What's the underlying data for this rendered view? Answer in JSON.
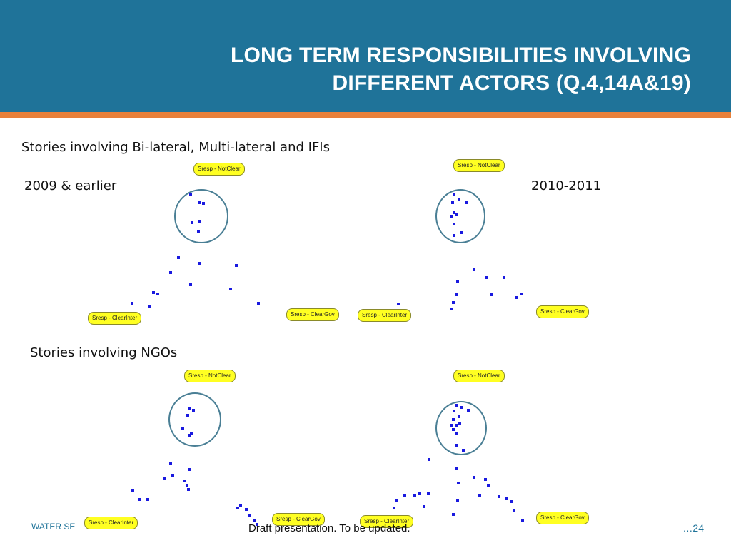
{
  "slide": {
    "title_line1": "LONG TERM RESPONSIBILITIES INVOLVING",
    "title_line2": "DIFFERENT ACTORS (Q.4,14A&19)",
    "section1": "Stories involving Bi-lateral, Multi-lateral and IFIs",
    "section2": "Stories involving NGOs",
    "period_left": "2009 & earlier",
    "period_right": "2010-2011",
    "footer_left": "WATER SE",
    "footer_center": "Draft presentation. To be updated.",
    "footer_right": "…24"
  },
  "clusters": [
    {
      "id": "bilateral-2009",
      "tags": {
        "not_clear": "Sresp - NotClear",
        "clear_inter": "Sresp - ClearInter",
        "clear_gov": "Sresp - ClearGov"
      },
      "point_count": 21
    },
    {
      "id": "bilateral-2010",
      "tags": {
        "not_clear": "Sresp - NotClear",
        "clear_inter": "Sresp - ClearInter",
        "clear_gov": "Sresp - ClearGov"
      },
      "point_count": 23
    },
    {
      "id": "ngo-2009",
      "tags": {
        "not_clear": "Sresp - NotClear",
        "clear_inter": "Sresp - ClearInter",
        "clear_gov": "Sresp - ClearGov"
      },
      "point_count": 22
    },
    {
      "id": "ngo-2010",
      "tags": {
        "not_clear": "Sresp - NotClear",
        "clear_inter": "Sresp - ClearInter",
        "clear_gov": "Sresp - ClearGov"
      },
      "point_count": 40
    }
  ],
  "colors": {
    "header": "#1f7399",
    "accent_stripe": "#e8803a",
    "tag_fill": "#ffff22",
    "point": "#1a1adf",
    "circle": "#4a7f95"
  }
}
